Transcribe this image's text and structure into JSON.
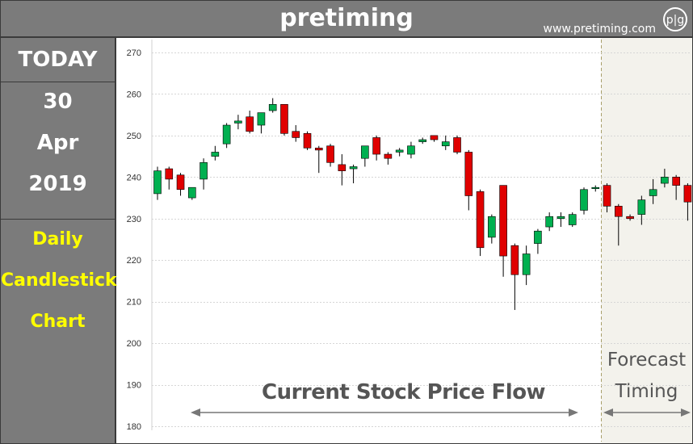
{
  "header": {
    "title": "pretiming",
    "site": "www.pretiming.com",
    "logo_text": "p|g"
  },
  "sidebar": {
    "today": "TODAY",
    "day": "30",
    "month": "Apr",
    "year": "2019",
    "line1": "Daily",
    "line2": "Candlestick",
    "line3": "Chart"
  },
  "labels": {
    "flow": "Current Stock Price Flow",
    "forecast_line1": "Forecast",
    "forecast_line2": "Timing"
  },
  "colors": {
    "up": "#00b050",
    "down": "#e00000",
    "forecast_bg": "#f3f2ec",
    "grid": "#d6d6d6",
    "wick": "#000000"
  },
  "chart_data": {
    "type": "candlestick",
    "title": "Daily Candlestick Chart",
    "ylim": [
      180,
      270
    ],
    "yticks": [
      180,
      190,
      200,
      210,
      220,
      230,
      240,
      250,
      260,
      270
    ],
    "series": [
      {
        "name": "historical",
        "candles": [
          {
            "o": 236.0,
            "h": 242.5,
            "l": 234.5,
            "c": 241.5
          },
          {
            "o": 242.0,
            "h": 242.5,
            "l": 237.0,
            "c": 239.5
          },
          {
            "o": 240.5,
            "h": 241.0,
            "l": 235.5,
            "c": 237.0
          },
          {
            "o": 235.0,
            "h": 237.5,
            "l": 234.5,
            "c": 237.5
          },
          {
            "o": 239.5,
            "h": 244.5,
            "l": 237.0,
            "c": 243.5
          },
          {
            "o": 245.0,
            "h": 247.5,
            "l": 244.0,
            "c": 246.0
          },
          {
            "o": 248.0,
            "h": 253.0,
            "l": 247.0,
            "c": 252.5
          },
          {
            "o": 253.0,
            "h": 255.0,
            "l": 251.5,
            "c": 253.5
          },
          {
            "o": 254.5,
            "h": 256.0,
            "l": 250.5,
            "c": 251.0
          },
          {
            "o": 252.5,
            "h": 255.5,
            "l": 250.5,
            "c": 255.5
          },
          {
            "o": 256.0,
            "h": 259.0,
            "l": 255.5,
            "c": 257.5
          },
          {
            "o": 257.5,
            "h": 257.5,
            "l": 250.0,
            "c": 250.5
          },
          {
            "o": 251.0,
            "h": 252.5,
            "l": 248.5,
            "c": 249.5
          },
          {
            "o": 250.5,
            "h": 251.0,
            "l": 246.5,
            "c": 247.0
          },
          {
            "o": 247.0,
            "h": 247.5,
            "l": 241.0,
            "c": 246.5
          },
          {
            "o": 247.5,
            "h": 248.0,
            "l": 242.5,
            "c": 243.5
          },
          {
            "o": 243.0,
            "h": 245.5,
            "l": 238.0,
            "c": 241.5
          },
          {
            "o": 242.0,
            "h": 243.0,
            "l": 238.5,
            "c": 242.5
          },
          {
            "o": 244.5,
            "h": 247.0,
            "l": 242.5,
            "c": 247.5
          },
          {
            "o": 249.5,
            "h": 250.0,
            "l": 244.0,
            "c": 245.5
          },
          {
            "o": 245.5,
            "h": 246.0,
            "l": 243.0,
            "c": 244.5
          },
          {
            "o": 246.0,
            "h": 247.0,
            "l": 245.0,
            "c": 246.5
          },
          {
            "o": 245.5,
            "h": 248.5,
            "l": 244.5,
            "c": 247.5
          },
          {
            "o": 248.5,
            "h": 249.5,
            "l": 248.0,
            "c": 249.0
          },
          {
            "o": 250.0,
            "h": 250.0,
            "l": 248.5,
            "c": 249.0
          },
          {
            "o": 247.5,
            "h": 250.0,
            "l": 246.5,
            "c": 248.5
          },
          {
            "o": 249.5,
            "h": 250.0,
            "l": 245.5,
            "c": 246.0
          },
          {
            "o": 246.0,
            "h": 246.5,
            "l": 232.0,
            "c": 235.5
          },
          {
            "o": 236.5,
            "h": 237.0,
            "l": 221.0,
            "c": 223.0
          },
          {
            "o": 225.5,
            "h": 231.0,
            "l": 224.0,
            "c": 230.5
          },
          {
            "o": 238.0,
            "h": 238.0,
            "l": 216.0,
            "c": 221.0
          },
          {
            "o": 223.5,
            "h": 224.0,
            "l": 208.0,
            "c": 216.5
          },
          {
            "o": 216.5,
            "h": 223.5,
            "l": 214.0,
            "c": 221.5
          },
          {
            "o": 224.0,
            "h": 227.5,
            "l": 221.5,
            "c": 227.0
          },
          {
            "o": 228.0,
            "h": 231.5,
            "l": 227.0,
            "c": 230.5
          },
          {
            "o": 230.0,
            "h": 231.5,
            "l": 228.0,
            "c": 230.5
          },
          {
            "o": 228.5,
            "h": 231.5,
            "l": 228.0,
            "c": 231.0
          },
          {
            "o": 232.0,
            "h": 237.5,
            "l": 231.0,
            "c": 237.0
          },
          {
            "o": 237.5,
            "h": 238.0,
            "l": 236.5,
            "c": 237.5
          },
          {
            "o": 238.0,
            "h": 238.5,
            "l": 231.5,
            "c": 233.0
          }
        ]
      },
      {
        "name": "forecast",
        "candles": [
          {
            "o": 233.0,
            "h": 233.5,
            "l": 223.5,
            "c": 230.5
          },
          {
            "o": 230.5,
            "h": 231.0,
            "l": 229.5,
            "c": 230.0
          },
          {
            "o": 231.0,
            "h": 235.5,
            "l": 228.5,
            "c": 234.5
          },
          {
            "o": 235.5,
            "h": 239.5,
            "l": 233.5,
            "c": 237.0
          },
          {
            "o": 238.5,
            "h": 242.0,
            "l": 237.5,
            "c": 240.0
          },
          {
            "o": 240.0,
            "h": 240.5,
            "l": 234.5,
            "c": 238.0
          },
          {
            "o": 238.0,
            "h": 238.5,
            "l": 229.5,
            "c": 234.0
          }
        ]
      }
    ]
  }
}
